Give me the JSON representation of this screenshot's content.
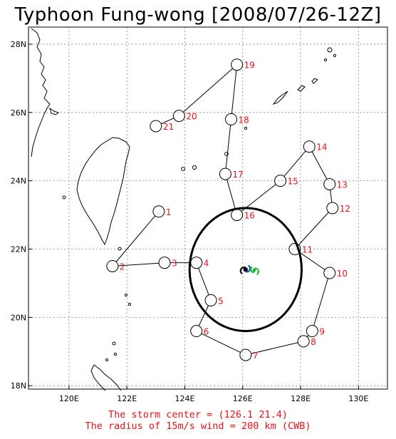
{
  "title": "Typhoon Fung-wong [2008/07/26-12Z]",
  "colors": {
    "track": "#000000",
    "member_label": "#e8141e",
    "grid": "#888888",
    "wind_circle": "#000000",
    "storm_icon_dark": "#111111",
    "storm_icon_green": "#19b832",
    "storm_icon_blue": "#1a3fd0"
  },
  "axes": {
    "lon_ticks": [
      {
        "v": 120,
        "label": "120E"
      },
      {
        "v": 122,
        "label": "122E"
      },
      {
        "v": 124,
        "label": "124E"
      },
      {
        "v": 126,
        "label": "126E"
      },
      {
        "v": 128,
        "label": "128E"
      },
      {
        "v": 130,
        "label": "130E"
      }
    ],
    "lat_ticks": [
      {
        "v": 18,
        "label": "18N"
      },
      {
        "v": 20,
        "label": "20N"
      },
      {
        "v": 22,
        "label": "22N"
      },
      {
        "v": 24,
        "label": "24N"
      },
      {
        "v": 26,
        "label": "26N"
      },
      {
        "v": 28,
        "label": "28N"
      }
    ]
  },
  "track_points": [
    {
      "id": "1",
      "lon": 123.1,
      "lat": 23.1
    },
    {
      "id": "2",
      "lon": 121.5,
      "lat": 21.5
    },
    {
      "id": "3",
      "lon": 123.3,
      "lat": 21.6
    },
    {
      "id": "4",
      "lon": 124.4,
      "lat": 21.6
    },
    {
      "id": "5",
      "lon": 124.9,
      "lat": 20.5
    },
    {
      "id": "6",
      "lon": 124.4,
      "lat": 19.6
    },
    {
      "id": "7",
      "lon": 126.1,
      "lat": 18.9
    },
    {
      "id": "8",
      "lon": 128.1,
      "lat": 19.3
    },
    {
      "id": "9",
      "lon": 128.4,
      "lat": 19.6
    },
    {
      "id": "10",
      "lon": 129.0,
      "lat": 21.3
    },
    {
      "id": "11",
      "lon": 127.8,
      "lat": 22.0
    },
    {
      "id": "12",
      "lon": 129.1,
      "lat": 23.2
    },
    {
      "id": "13",
      "lon": 129.0,
      "lat": 23.9
    },
    {
      "id": "14",
      "lon": 128.3,
      "lat": 25.0
    },
    {
      "id": "15",
      "lon": 127.3,
      "lat": 24.0
    },
    {
      "id": "16",
      "lon": 125.8,
      "lat": 23.0
    },
    {
      "id": "17",
      "lon": 125.4,
      "lat": 24.2
    },
    {
      "id": "18",
      "lon": 125.6,
      "lat": 25.8
    },
    {
      "id": "19",
      "lon": 125.8,
      "lat": 27.4
    },
    {
      "id": "20",
      "lon": 123.8,
      "lat": 25.9
    },
    {
      "id": "21",
      "lon": 123.0,
      "lat": 25.6
    }
  ],
  "storm_center": {
    "lon": 126.1,
    "lat": 21.4
  },
  "wind_radius_km": 200,
  "notes": {
    "line1": "The storm center = (126.1 21.4)",
    "line2": "The radius of 15m/s wind = 200 km (CWB)"
  }
}
